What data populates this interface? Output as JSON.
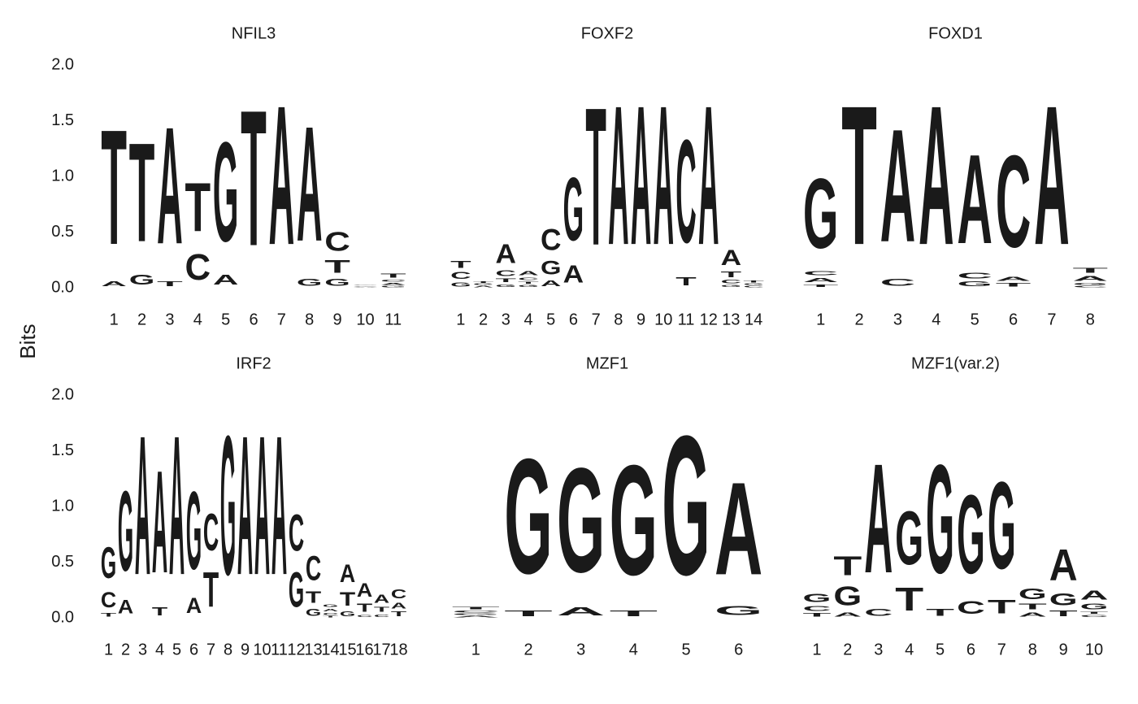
{
  "ylabel": "Bits",
  "chart_data": [
    {
      "type": "logo",
      "title": "NFIL3",
      "categories": [
        "1",
        "2",
        "3",
        "4",
        "5",
        "6",
        "7",
        "8",
        "9",
        "10",
        "11"
      ],
      "ylim": [
        0,
        2
      ],
      "yticks": [
        {
          "value": 0,
          "label": "0.0"
        },
        0.5,
        {
          "value": 1,
          "label": "1.0"
        },
        1.5,
        {
          "value": 2,
          "label": "2.0"
        }
      ],
      "series": [
        {
          "name": "A",
          "color": "#109648",
          "values": [
            0.07,
            0,
            1.68,
            0,
            0.14,
            0,
            2.0,
            1.65,
            0,
            0.01,
            0.03
          ]
        },
        {
          "name": "C",
          "color": "#255C99",
          "values": [
            0,
            0,
            0,
            0.37,
            0,
            0,
            0,
            0,
            0.27,
            0.01,
            0.03
          ]
        },
        {
          "name": "G",
          "color": "#F7B32B",
          "values": [
            0,
            0.14,
            0,
            0,
            1.43,
            0,
            0,
            0.1,
            0.1,
            0.01,
            0.02
          ]
        },
        {
          "name": "T",
          "color": "#D62839",
          "values": [
            1.65,
            1.42,
            0.07,
            0.7,
            0,
            1.95,
            0,
            0,
            0.18,
            0,
            0.06
          ]
        }
      ]
    },
    {
      "type": "logo",
      "title": "FOXF2",
      "categories": [
        "1",
        "2",
        "3",
        "4",
        "5",
        "6",
        "7",
        "8",
        "9",
        "10",
        "11",
        "12",
        "13",
        "14"
      ],
      "ylim": [
        0,
        2
      ],
      "series": [
        {
          "name": "A",
          "color": "#109648",
          "values": [
            0,
            0.02,
            0.27,
            0.06,
            0.08,
            0.25,
            0,
            2,
            2,
            2,
            0,
            2,
            0.22,
            0
          ]
        },
        {
          "name": "C",
          "color": "#255C99",
          "values": [
            0.1,
            0,
            0.08,
            0.04,
            0.3,
            0,
            0,
            0,
            0,
            0,
            1.48,
            0,
            0.05,
            0.02
          ]
        },
        {
          "name": "G",
          "color": "#F7B32B",
          "values": [
            0.06,
            0.02,
            0.04,
            0.03,
            0.2,
            0.9,
            0,
            0,
            0,
            0,
            0,
            0,
            0.03,
            0.02
          ]
        },
        {
          "name": "T",
          "color": "#D62839",
          "values": [
            0.1,
            0.02,
            0.05,
            0.03,
            0,
            0,
            1.98,
            0,
            0,
            0,
            0.12,
            0,
            0.08,
            0.03
          ]
        }
      ]
    },
    {
      "type": "logo",
      "title": "FOXD1",
      "categories": [
        "1",
        "2",
        "3",
        "4",
        "5",
        "6",
        "7",
        "8"
      ],
      "ylim": [
        0,
        2
      ],
      "series": [
        {
          "name": "A",
          "color": "#109648",
          "values": [
            0.06,
            0,
            1.62,
            2,
            1.28,
            0.06,
            2,
            0.07
          ]
        },
        {
          "name": "C",
          "color": "#255C99",
          "values": [
            0.06,
            0,
            0.1,
            0,
            0.08,
            1.32,
            0,
            0.02
          ]
        },
        {
          "name": "G",
          "color": "#F7B32B",
          "values": [
            1.0,
            0,
            0,
            0,
            0.07,
            0,
            0,
            0.03
          ]
        },
        {
          "name": "T",
          "color": "#D62839",
          "values": [
            0.04,
            2,
            0,
            0,
            0,
            0.05,
            0,
            0.07
          ]
        }
      ]
    },
    {
      "type": "logo",
      "title": "IRF2",
      "categories": [
        "1",
        "2",
        "3",
        "4",
        "5",
        "6",
        "7",
        "8",
        "9",
        "10",
        "11",
        "12",
        "13",
        "14",
        "15",
        "16",
        "17",
        "18"
      ],
      "ylim": [
        0,
        2
      ],
      "yticks": [
        {
          "value": 0,
          "label": "0.0"
        },
        0.5,
        {
          "value": 1,
          "label": "1.0"
        },
        1.5,
        {
          "value": 2,
          "label": "2.0"
        }
      ],
      "series": [
        {
          "name": "A",
          "color": "#109648",
          "values": [
            0,
            0.2,
            2,
            1.47,
            2,
            0.22,
            0,
            0,
            2,
            2,
            2,
            0,
            0,
            0.04,
            0.26,
            0.2,
            0.12,
            0.08
          ]
        },
        {
          "name": "C",
          "color": "#255C99",
          "values": [
            0.22,
            0,
            0,
            0,
            0,
            0,
            0.53,
            0,
            0,
            0,
            0,
            0.52,
            0.35,
            0.03,
            0,
            0.03,
            0.04,
            0.13
          ]
        },
        {
          "name": "G",
          "color": "#F7B32B",
          "values": [
            0.45,
            1.15,
            0,
            0,
            0,
            1.12,
            0,
            2,
            0,
            0,
            0,
            0.5,
            0.1,
            0.04,
            0.07,
            0,
            0,
            0
          ]
        },
        {
          "name": "T",
          "color": "#D62839",
          "values": [
            0.05,
            0,
            0,
            0.12,
            0,
            0,
            0.5,
            0,
            0,
            0,
            0,
            0,
            0.17,
            0.02,
            0.2,
            0.12,
            0.07,
            0.07
          ]
        }
      ]
    },
    {
      "type": "logo",
      "title": "MZF1",
      "categories": [
        "1",
        "2",
        "3",
        "4",
        "5",
        "6"
      ],
      "ylim": [
        0,
        2
      ],
      "series": [
        {
          "name": "A",
          "color": "#109648",
          "values": [
            0.02,
            0,
            0.12,
            0,
            0,
            1.33
          ]
        },
        {
          "name": "C",
          "color": "#255C99",
          "values": [
            0.03,
            0,
            0,
            0,
            0,
            0
          ]
        },
        {
          "name": "G",
          "color": "#F7B32B",
          "values": [
            0.02,
            1.65,
            1.5,
            1.58,
            2,
            0.13
          ]
        },
        {
          "name": "T",
          "color": "#D62839",
          "values": [
            0.04,
            0.08,
            0,
            0.08,
            0,
            0
          ]
        }
      ]
    },
    {
      "type": "logo",
      "title": "MZF1(var.2)",
      "categories": [
        "1",
        "2",
        "3",
        "4",
        "5",
        "6",
        "7",
        "8",
        "9",
        "10"
      ],
      "ylim": [
        0,
        2
      ],
      "series": [
        {
          "name": "A",
          "color": "#109648",
          "values": [
            0,
            0.06,
            1.57,
            0,
            0,
            0,
            0,
            0.06,
            0.45,
            0.13
          ]
        },
        {
          "name": "C",
          "color": "#255C99",
          "values": [
            0.07,
            0,
            0.1,
            0,
            0,
            0.18,
            0,
            0,
            0,
            0.03
          ]
        },
        {
          "name": "G",
          "color": "#F7B32B",
          "values": [
            0.12,
            0.27,
            0,
            0.77,
            1.56,
            1.13,
            1.25,
            0.15,
            0.17,
            0.08
          ]
        },
        {
          "name": "T",
          "color": "#D62839",
          "values": [
            0.05,
            0.27,
            0,
            0.33,
            0.1,
            0,
            0.2,
            0.08,
            0.08,
            0.03
          ]
        }
      ]
    }
  ]
}
